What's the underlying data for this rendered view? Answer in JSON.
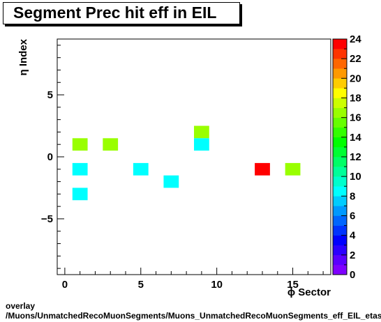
{
  "chart_data": {
    "type": "heatmap",
    "title": "Segment Prec hit eff in EIL",
    "xlabel": "ϕ Sector",
    "ylabel": "η Index",
    "xlim": [
      -0.5,
      17.5
    ],
    "ylim": [
      -9.5,
      9.5
    ],
    "x_ticks": [
      0,
      5,
      10,
      15
    ],
    "y_ticks": [
      -5,
      0,
      5
    ],
    "z_range": [
      0,
      24
    ],
    "z_ticks": [
      0,
      2,
      4,
      6,
      8,
      10,
      12,
      14,
      16,
      18,
      20,
      22,
      24
    ],
    "cells": [
      {
        "x": 1,
        "y": 1,
        "z": 16
      },
      {
        "x": 3,
        "y": 1,
        "z": 16
      },
      {
        "x": 9,
        "y": 2,
        "z": 16
      },
      {
        "x": 9,
        "y": 1,
        "z": 8
      },
      {
        "x": 1,
        "y": -1,
        "z": 8
      },
      {
        "x": 5,
        "y": -1,
        "z": 8
      },
      {
        "x": 13,
        "y": -1,
        "z": 24
      },
      {
        "x": 15,
        "y": -1,
        "z": 16
      },
      {
        "x": 7,
        "y": -2,
        "z": 8
      },
      {
        "x": 1,
        "y": -3,
        "z": 8
      }
    ],
    "grid": false,
    "legend": "colorbar-right"
  },
  "footer": {
    "line1": "overlay",
    "line2": "/Muons/UnmatchedRecoMuonSegments/Muons_UnmatchedRecoMuonSegments_eff_EIL_etastation_nPrechit"
  },
  "colors": {
    "palette": [
      "#7f00ff",
      "#5a00ff",
      "#2b00ff",
      "#0000ff",
      "#0033ff",
      "#0066ff",
      "#0099ff",
      "#00ccff",
      "#00ffff",
      "#00ffcc",
      "#00ff99",
      "#00ff66",
      "#00ff33",
      "#00ff00",
      "#33ff00",
      "#66ff00",
      "#99ff00",
      "#ccff00",
      "#ffff00",
      "#ffcc00",
      "#ff9900",
      "#ff6600",
      "#ff3300",
      "#ff0000"
    ]
  }
}
